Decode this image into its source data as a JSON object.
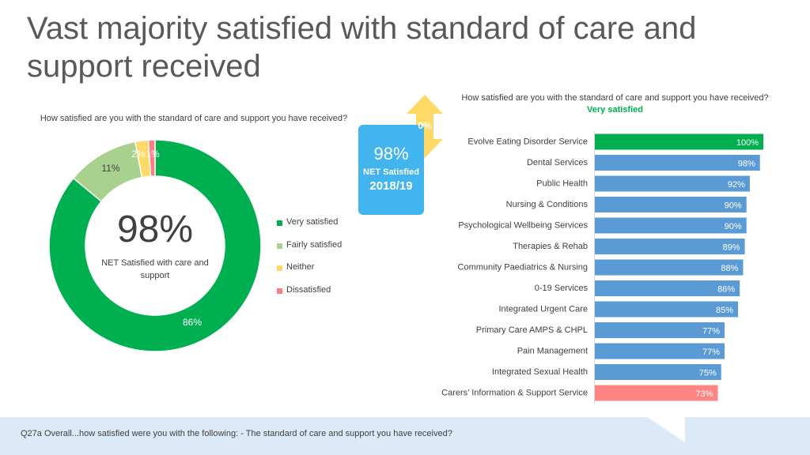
{
  "title": "Vast majority satisfied with standard of care and support received",
  "donut_question": "How satisfied  are you with the standard of care and support you have received?",
  "donut_center": {
    "value": "98%",
    "label": "NET Satisfied with care and support"
  },
  "net_box": {
    "value": "98%",
    "label": "NET Satisfied",
    "year": "2018/19",
    "change": "0%"
  },
  "bar_question": {
    "text": "How satisfied  are you with the standard of care and support you have received?",
    "highlight": "Very satisfied"
  },
  "footer": "Q27a Overall...how satisfied were you with the following: - The standard of care and support you have received?",
  "colors": {
    "very_satisfied": "#00b050",
    "fairly_satisfied": "#a9d18e",
    "neither": "#ffd966",
    "dissatisfied": "#ff7c80",
    "bar_default": "#5b9bd5",
    "bar_top": "#00b050",
    "bar_bottom": "#ff8585",
    "net_box": "#42b4ee",
    "arrow": "#ffd966",
    "footer": "#dce9f6"
  },
  "chart_data": [
    {
      "type": "pie",
      "categories": [
        "Very satisfied",
        "Fairly satisfied",
        "Neither",
        "Dissatisfied"
      ],
      "values": [
        86,
        11,
        2,
        1
      ],
      "labels": [
        "86%",
        "11%",
        "2%",
        "1%"
      ],
      "legend": "right"
    },
    {
      "type": "bar",
      "orientation": "horizontal",
      "categories": [
        "Evolve Eating Disorder Service",
        "Dental Services",
        "Public Health",
        "Nursing & Conditions",
        "Psychological Wellbeing Services",
        "Therapies & Rehab",
        "Community Paediatrics & Nursing",
        "0-19 Services",
        "Integrated Urgent Care",
        "Primary Care AMPS & CHPL",
        "Pain Management",
        "Integrated Sexual Health",
        "Carers’ Information & Support Service"
      ],
      "values": [
        100,
        98,
        92,
        90,
        90,
        89,
        88,
        86,
        85,
        77,
        77,
        75,
        73
      ],
      "labels": [
        "100%",
        "98%",
        "92%",
        "90%",
        "90%",
        "89%",
        "88%",
        "86%",
        "85%",
        "77%",
        "77%",
        "75%",
        "73%"
      ],
      "xlim": [
        0,
        100
      ]
    }
  ]
}
